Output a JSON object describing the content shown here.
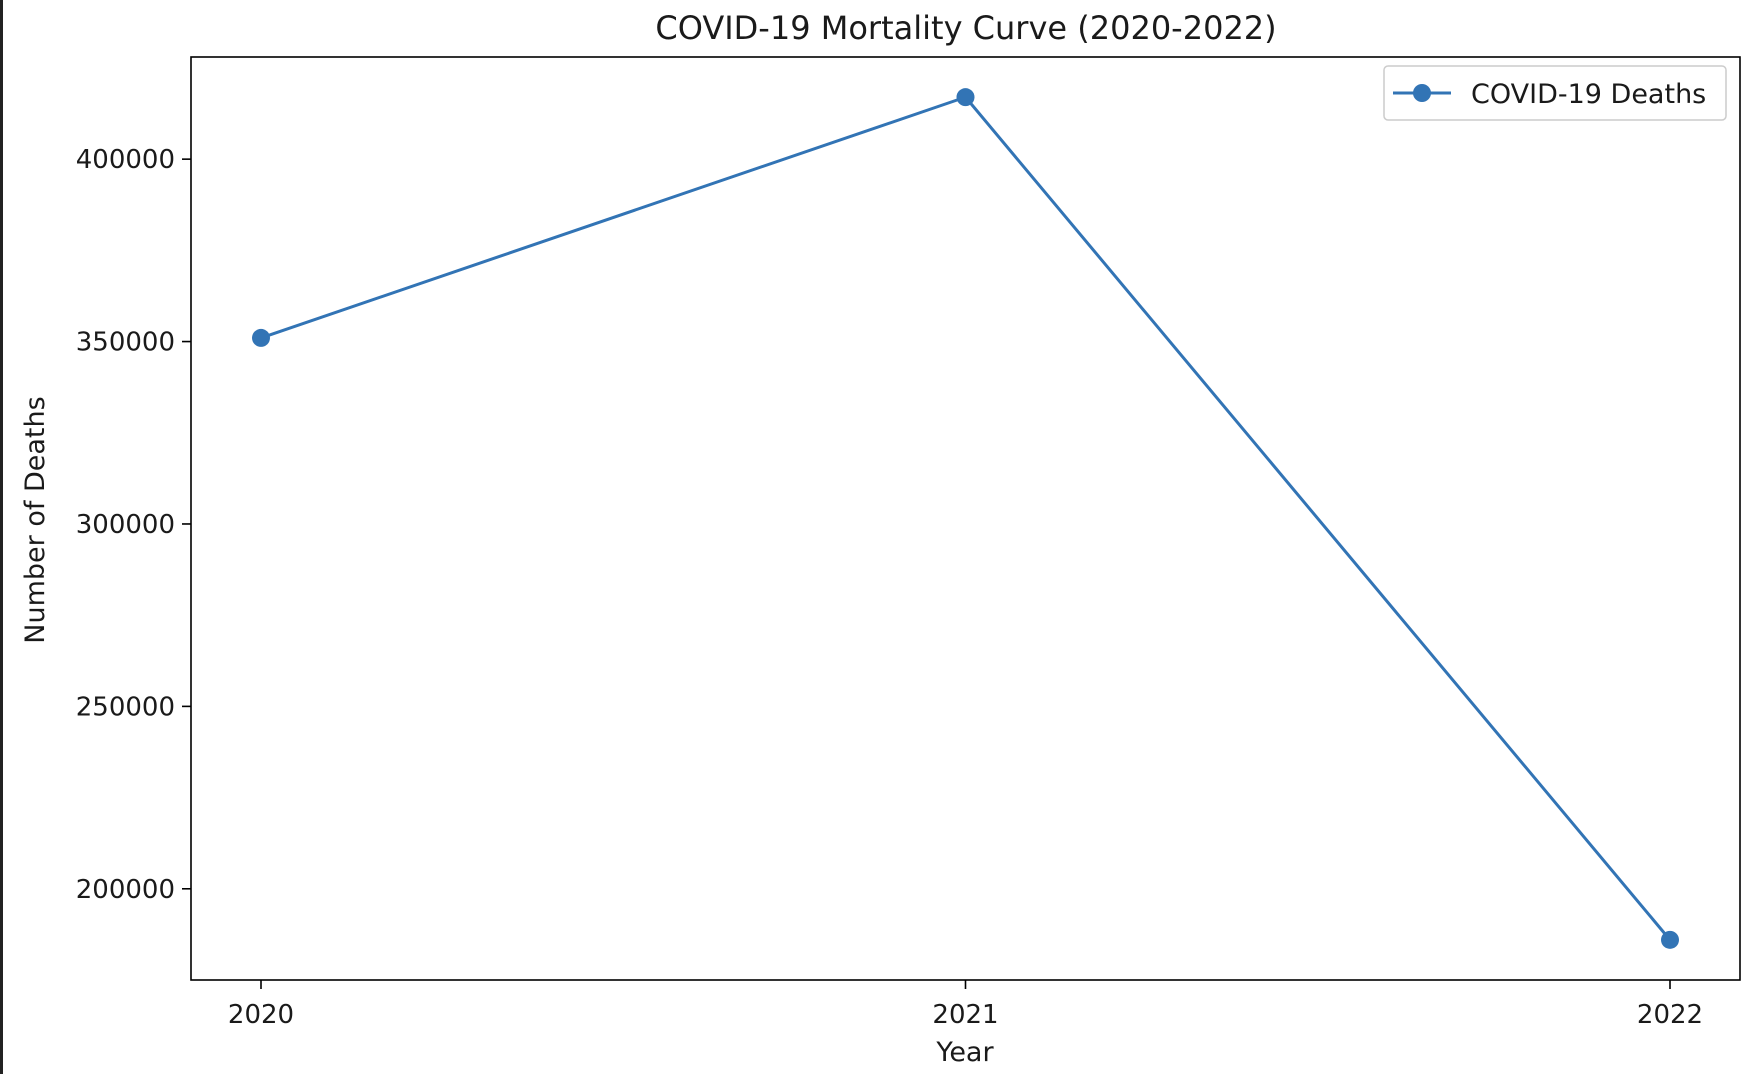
{
  "chart_data": {
    "type": "line",
    "title": "COVID-19 Mortality Curve (2020-2022)",
    "xlabel": "Year",
    "ylabel": "Number of Deaths",
    "x": [
      "2020",
      "2021",
      "2022"
    ],
    "series": [
      {
        "name": "COVID-19 Deaths",
        "values": [
          351000,
          417000,
          186000
        ],
        "color": "#3274b5",
        "marker": "circle"
      }
    ],
    "ylim": [
      175000,
      428000
    ],
    "yticks": [
      200000,
      250000,
      300000,
      350000,
      400000
    ],
    "ytick_labels": [
      "200000",
      "250000",
      "300000",
      "350000",
      "400000"
    ],
    "xtick_labels": [
      "2020",
      "2021",
      "2022"
    ],
    "grid": false,
    "legend": {
      "position": "top-right",
      "entries": [
        "COVID-19 Deaths"
      ]
    }
  }
}
